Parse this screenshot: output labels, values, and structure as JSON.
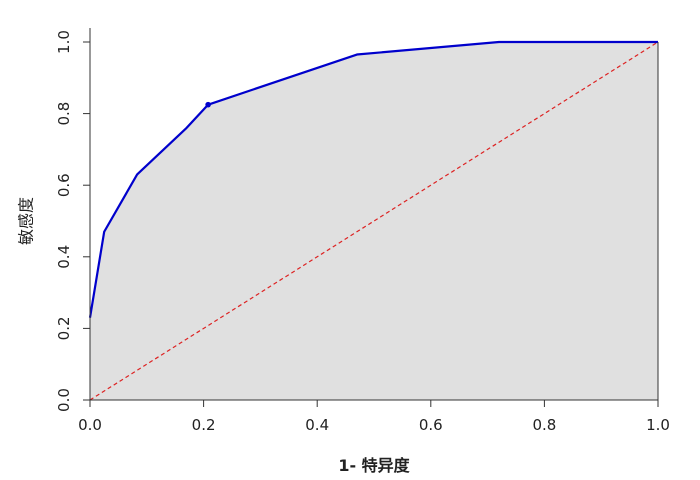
{
  "chart_data": {
    "type": "line",
    "title": "",
    "xlabel": "1- 特异度",
    "ylabel": "敏感度",
    "xlim": [
      0,
      1
    ],
    "ylim": [
      0,
      1
    ],
    "x_ticks": [
      0.0,
      0.2,
      0.4,
      0.6,
      0.8,
      1.0
    ],
    "y_ticks": [
      0.0,
      0.2,
      0.4,
      0.6,
      0.8,
      1.0
    ],
    "x_tick_labels": [
      "0.0",
      "0.2",
      "0.4",
      "0.6",
      "0.8",
      "1.0"
    ],
    "y_tick_labels": [
      "0.0",
      "0.2",
      "0.4",
      "0.6",
      "0.8",
      "1.0"
    ],
    "grid": false,
    "series": [
      {
        "style": "solid",
        "color": "#0000cc",
        "area_fill": "#e0e0e0",
        "x": [
          0.0,
          0.0,
          0.025,
          0.083,
          0.17,
          0.208,
          0.47,
          0.72,
          1.0
        ],
        "y": [
          0.23,
          0.23,
          0.47,
          0.63,
          0.76,
          0.825,
          0.965,
          1.0,
          1.0
        ],
        "highlight_point": [
          0.208,
          0.825
        ]
      },
      {
        "style": "dashed",
        "color": "#dd2222",
        "x": [
          0,
          1
        ],
        "y": [
          0,
          1
        ]
      }
    ]
  }
}
